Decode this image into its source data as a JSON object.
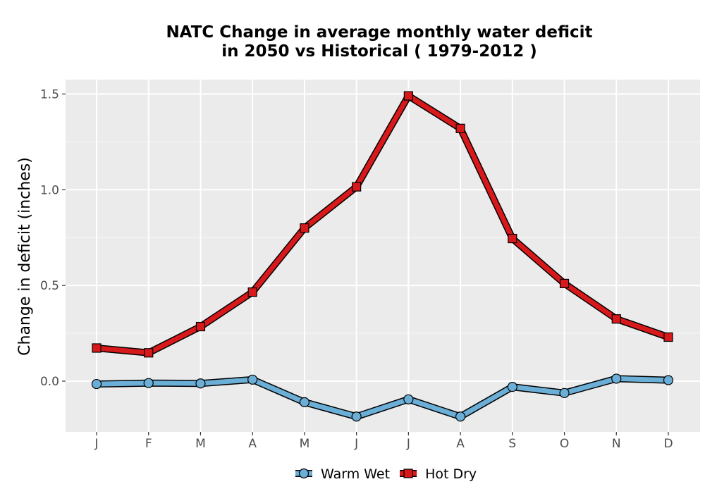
{
  "chart_data": {
    "type": "line",
    "title_lines": [
      "NATC  Change in average monthly water deficit",
      "in 2050 vs Historical ( 1979-2012 )"
    ],
    "xlabel": "",
    "ylabel": "Change in deficit (inches)",
    "categories": [
      "J",
      "F",
      "M",
      "A",
      "M",
      "J",
      "J",
      "A",
      "S",
      "O",
      "N",
      "D"
    ],
    "ylim": [
      -0.265,
      1.575
    ],
    "yticks": [
      0.0,
      0.5,
      1.0,
      1.5
    ],
    "ytick_labels": [
      "0.0",
      "0.5",
      "1.0",
      "1.5"
    ],
    "grid": true,
    "legend_position": "bottom",
    "series": [
      {
        "name": "Warm Wet",
        "marker": "circle",
        "color": "#6baed6",
        "values": [
          -0.015,
          -0.01,
          -0.012,
          0.008,
          -0.11,
          -0.185,
          -0.095,
          -0.185,
          -0.03,
          -0.062,
          0.013,
          0.005
        ]
      },
      {
        "name": "Hot Dry",
        "marker": "square",
        "color": "#d7191c",
        "values": [
          0.173,
          0.148,
          0.285,
          0.465,
          0.8,
          1.015,
          1.49,
          1.32,
          0.745,
          0.51,
          0.325,
          0.23
        ]
      }
    ]
  }
}
